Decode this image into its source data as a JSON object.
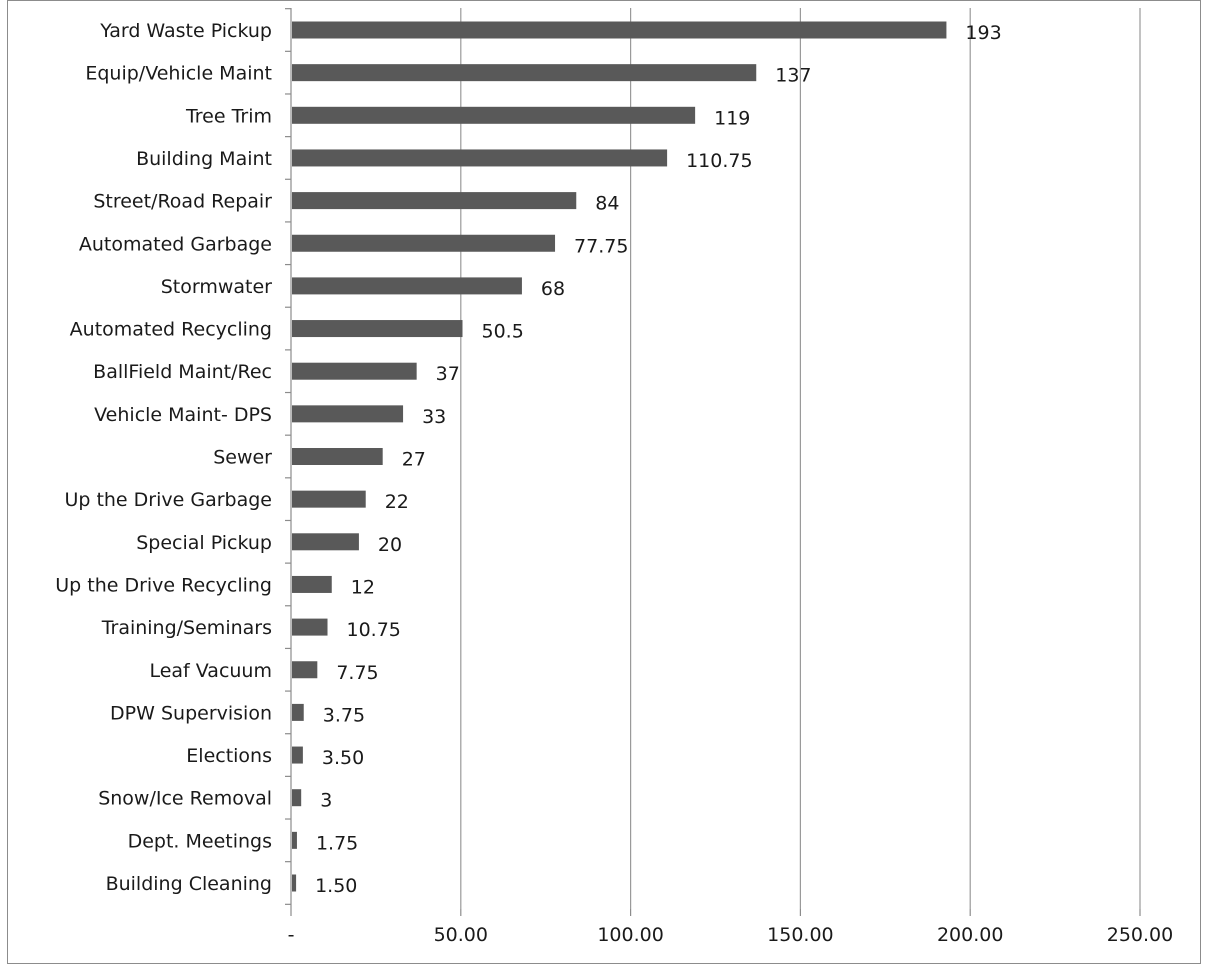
{
  "chart_data": {
    "type": "bar",
    "orientation": "horizontal",
    "categories": [
      "Yard Waste Pickup",
      "Equip/Vehicle Maint",
      "Tree Trim",
      "Building Maint",
      "Street/Road Repair",
      "Automated Garbage",
      "Stormwater",
      "Automated Recycling",
      "BallField Maint/Rec",
      "Vehicle Maint- DPS",
      "Sewer",
      "Up the Drive Garbage",
      "Special Pickup",
      "Up the Drive Recycling",
      "Training/Seminars",
      "Leaf Vacuum",
      "DPW Supervision",
      "Elections",
      "Snow/Ice Removal",
      "Dept. Meetings",
      "Building Cleaning"
    ],
    "values": [
      193,
      137,
      119,
      110.75,
      84,
      77.75,
      68,
      50.5,
      37,
      33,
      27,
      22,
      20,
      12,
      10.75,
      7.75,
      3.75,
      3.5,
      3,
      1.75,
      1.5
    ],
    "value_labels": [
      "193",
      "137",
      "119",
      "110.75",
      "84",
      "77.75",
      "68",
      "50.5",
      "37",
      "33",
      "27",
      "22",
      "20",
      "12",
      "10.75",
      "7.75",
      "3.75",
      "3.50",
      "3",
      "1.75",
      "1.50"
    ],
    "xlim": [
      0,
      250
    ],
    "x_ticks": [
      0,
      50,
      100,
      150,
      200,
      250
    ],
    "x_tick_labels": [
      "-",
      "50.00",
      "100.00",
      "150.00",
      "200.00",
      "250.00"
    ],
    "grid": "vertical",
    "legend": "none",
    "bar_color": "#595959",
    "grid_color": "#9a9a9a"
  }
}
